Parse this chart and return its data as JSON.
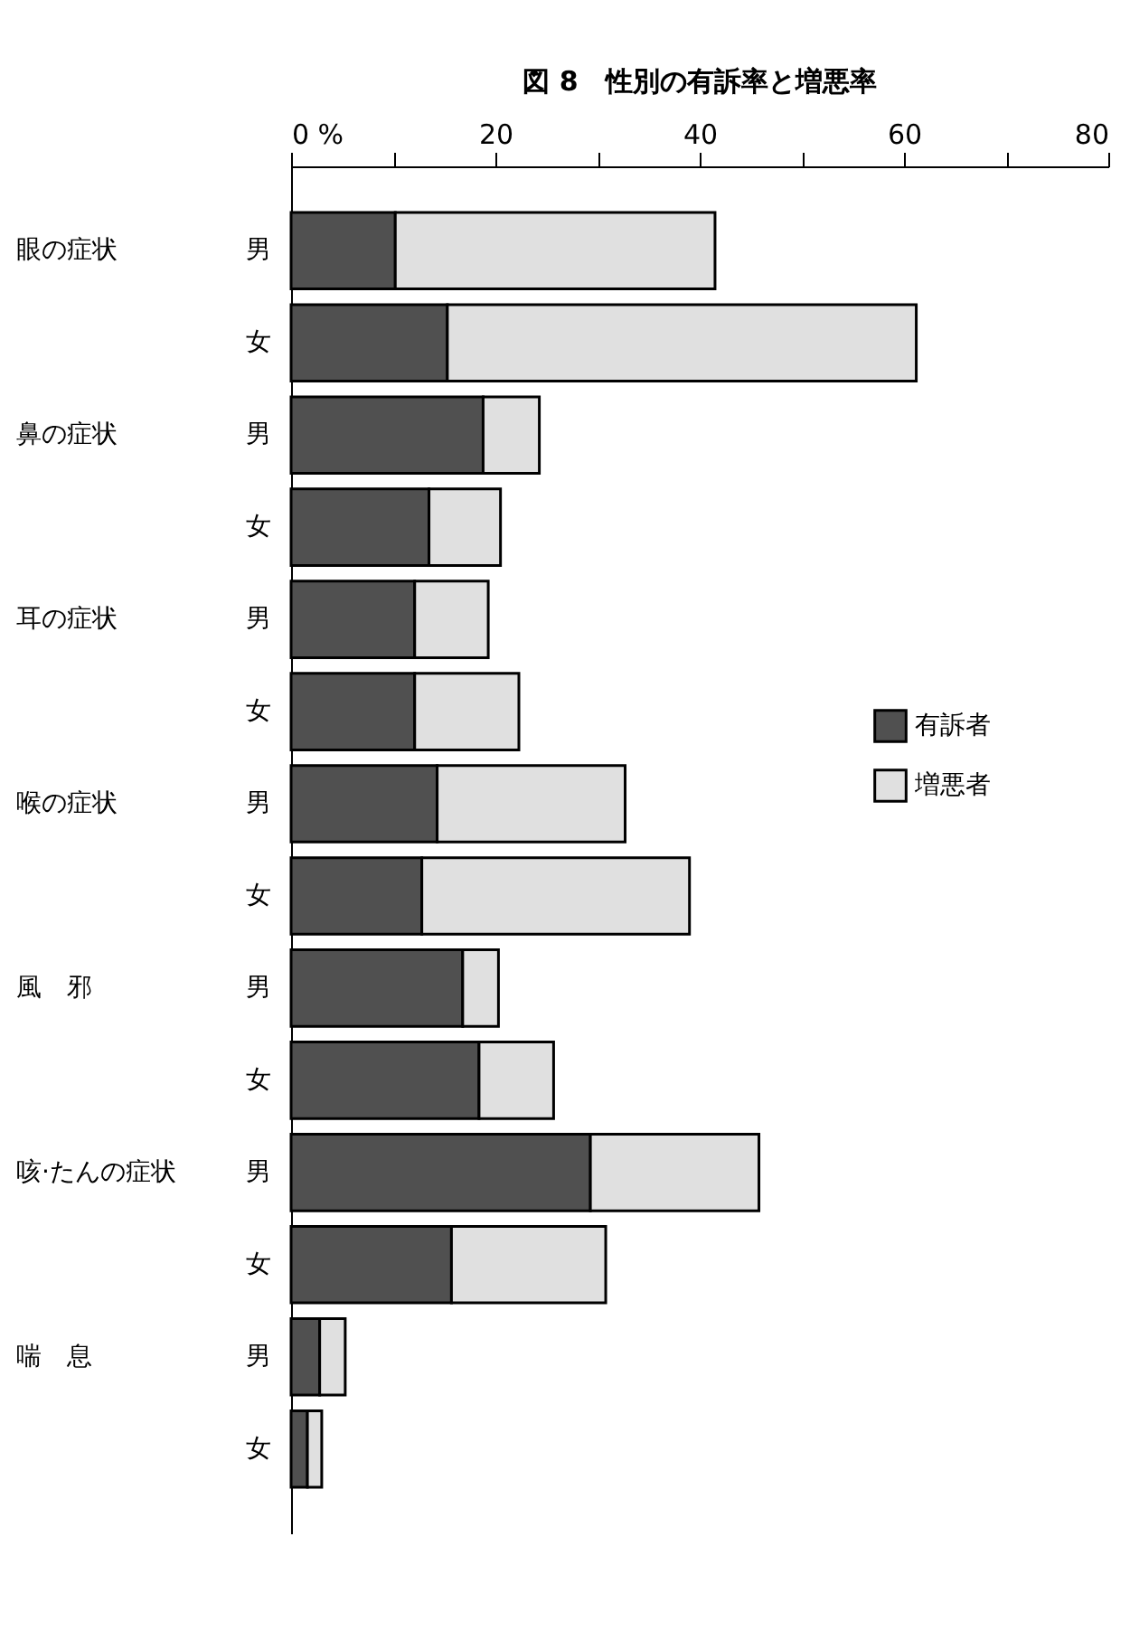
{
  "chart_data": {
    "type": "bar",
    "orientation": "horizontal",
    "stacked": true,
    "title": "図 8　性別の有訴率と増悪率",
    "categories": [
      "眼の症状 男",
      "女",
      "鼻の症状 男",
      "女",
      "耳の症状 男",
      "女",
      "喉の症状 男",
      "女",
      "風　邪 男",
      "女",
      "咳·たんの症状 男",
      "女",
      "喘　息 男",
      "女"
    ],
    "series": [
      {
        "name": "有訴者",
        "color": "#505050",
        "values": [
          10.2,
          15.3,
          18.8,
          13.5,
          12.1,
          12.1,
          14.3,
          12.8,
          16.8,
          18.4,
          29.3,
          15.7,
          2.8,
          1.6
        ]
      },
      {
        "name": "増悪者",
        "color": "#e0e0e0",
        "values": [
          31.3,
          45.9,
          5.5,
          7.0,
          7.2,
          10.2,
          18.4,
          26.2,
          3.5,
          7.3,
          16.5,
          15.1,
          2.5,
          1.4
        ]
      }
    ],
    "xlim": [
      0,
      80
    ],
    "xticks": [
      {
        "value": 0,
        "label": "0 %"
      },
      {
        "value": 10,
        "label": null
      },
      20,
      {
        "value": 30,
        "label": null
      },
      40,
      {
        "value": 50,
        "label": null
      },
      60,
      {
        "value": 70,
        "label": null
      },
      80
    ],
    "grid": false,
    "legend": "right"
  }
}
